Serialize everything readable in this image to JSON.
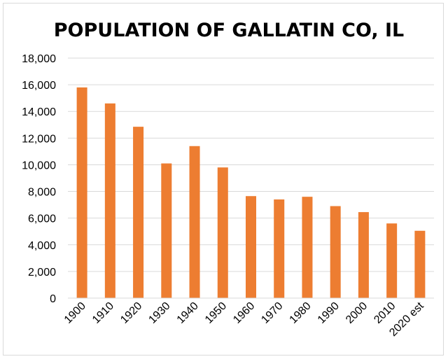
{
  "chart_data": {
    "type": "bar",
    "title": "POPULATION OF GALLATIN CO, IL",
    "xlabel": "",
    "ylabel": "",
    "categories": [
      "1900",
      "1910",
      "1920",
      "1930",
      "1940",
      "1950",
      "1960",
      "1970",
      "1980",
      "1990",
      "2000",
      "2010",
      "2020 est"
    ],
    "values": [
      15800,
      14600,
      12850,
      10100,
      11400,
      9800,
      7650,
      7400,
      7600,
      6900,
      6450,
      5600,
      5050
    ],
    "ylim": [
      0,
      18000
    ],
    "yticks": [
      "0",
      "2,000",
      "4,000",
      "6,000",
      "8,000",
      "10,000",
      "12,000",
      "14,000",
      "16,000",
      "18,000"
    ],
    "grid": "horizontal",
    "legend": "none",
    "bar_color": "#ED7D31"
  }
}
